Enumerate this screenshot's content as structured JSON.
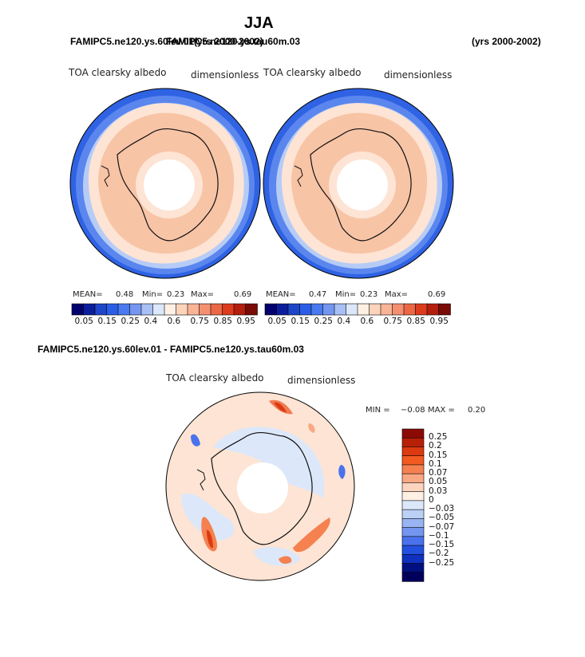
{
  "title": "JJA",
  "header": {
    "left": "FAMIPC5.ne120.ys.60lev.01",
    "overlap": "FAMIPC5.ne120.ys.tau60m.03",
    "years_left": "(yrs 2000-2002)",
    "years_right": "(yrs 2000-2002)"
  },
  "panels": [
    {
      "field": "TOA clearsky albedo",
      "units": "dimensionless",
      "mean_label": "MEAN=",
      "mean": "0.48",
      "min_label": "Min=",
      "min": "0.23",
      "max_label": "Max=",
      "max": "0.69"
    },
    {
      "field": "TOA clearsky albedo",
      "units": "dimensionless",
      "mean_label": "MEAN=",
      "mean": "0.47",
      "min_label": "Min=",
      "min": "0.23",
      "max_label": "Max=",
      "max": "0.69"
    }
  ],
  "colorbar": {
    "colors": [
      "#00006e",
      "#0a1e9c",
      "#1e46c8",
      "#2a5ee6",
      "#4a7af0",
      "#7496f0",
      "#a8c0f4",
      "#dce8fa",
      "#fff0e4",
      "#fcd4bc",
      "#f9b496",
      "#f49070",
      "#ec6844",
      "#dc3c1c",
      "#b41e0c",
      "#7a0a04"
    ],
    "ticks": [
      "0.05",
      "0.15",
      "0.25",
      "0.4",
      "0.6",
      "0.75",
      "0.85",
      "0.95"
    ]
  },
  "diff": {
    "title": "FAMIPC5.ne120.ys.60lev.01 - FAMIPC5.ne120.ys.tau60m.03",
    "field": "TOA clearsky albedo",
    "units": "dimensionless",
    "min_label": "MIN =",
    "min": "−0.08",
    "max_label": "MAX =",
    "max": "0.20",
    "colorbar": {
      "colors": [
        "#8c0a04",
        "#b82008",
        "#dc3a10",
        "#f25a20",
        "#f58050",
        "#f9a884",
        "#fdd4be",
        "#fff0e4",
        "#dce8fa",
        "#bcd0f6",
        "#98b4f2",
        "#7496f0",
        "#4a72ec",
        "#2450e0",
        "#1030c0",
        "#001080",
        "#00005c"
      ],
      "labels": [
        "0.25",
        "0.2",
        "0.15",
        "0.1",
        "0.07",
        "0.05",
        "0.03",
        "0",
        "−0.03",
        "−0.05",
        "−0.07",
        "−0.1",
        "−0.15",
        "−0.2",
        "−0.25"
      ]
    }
  }
}
